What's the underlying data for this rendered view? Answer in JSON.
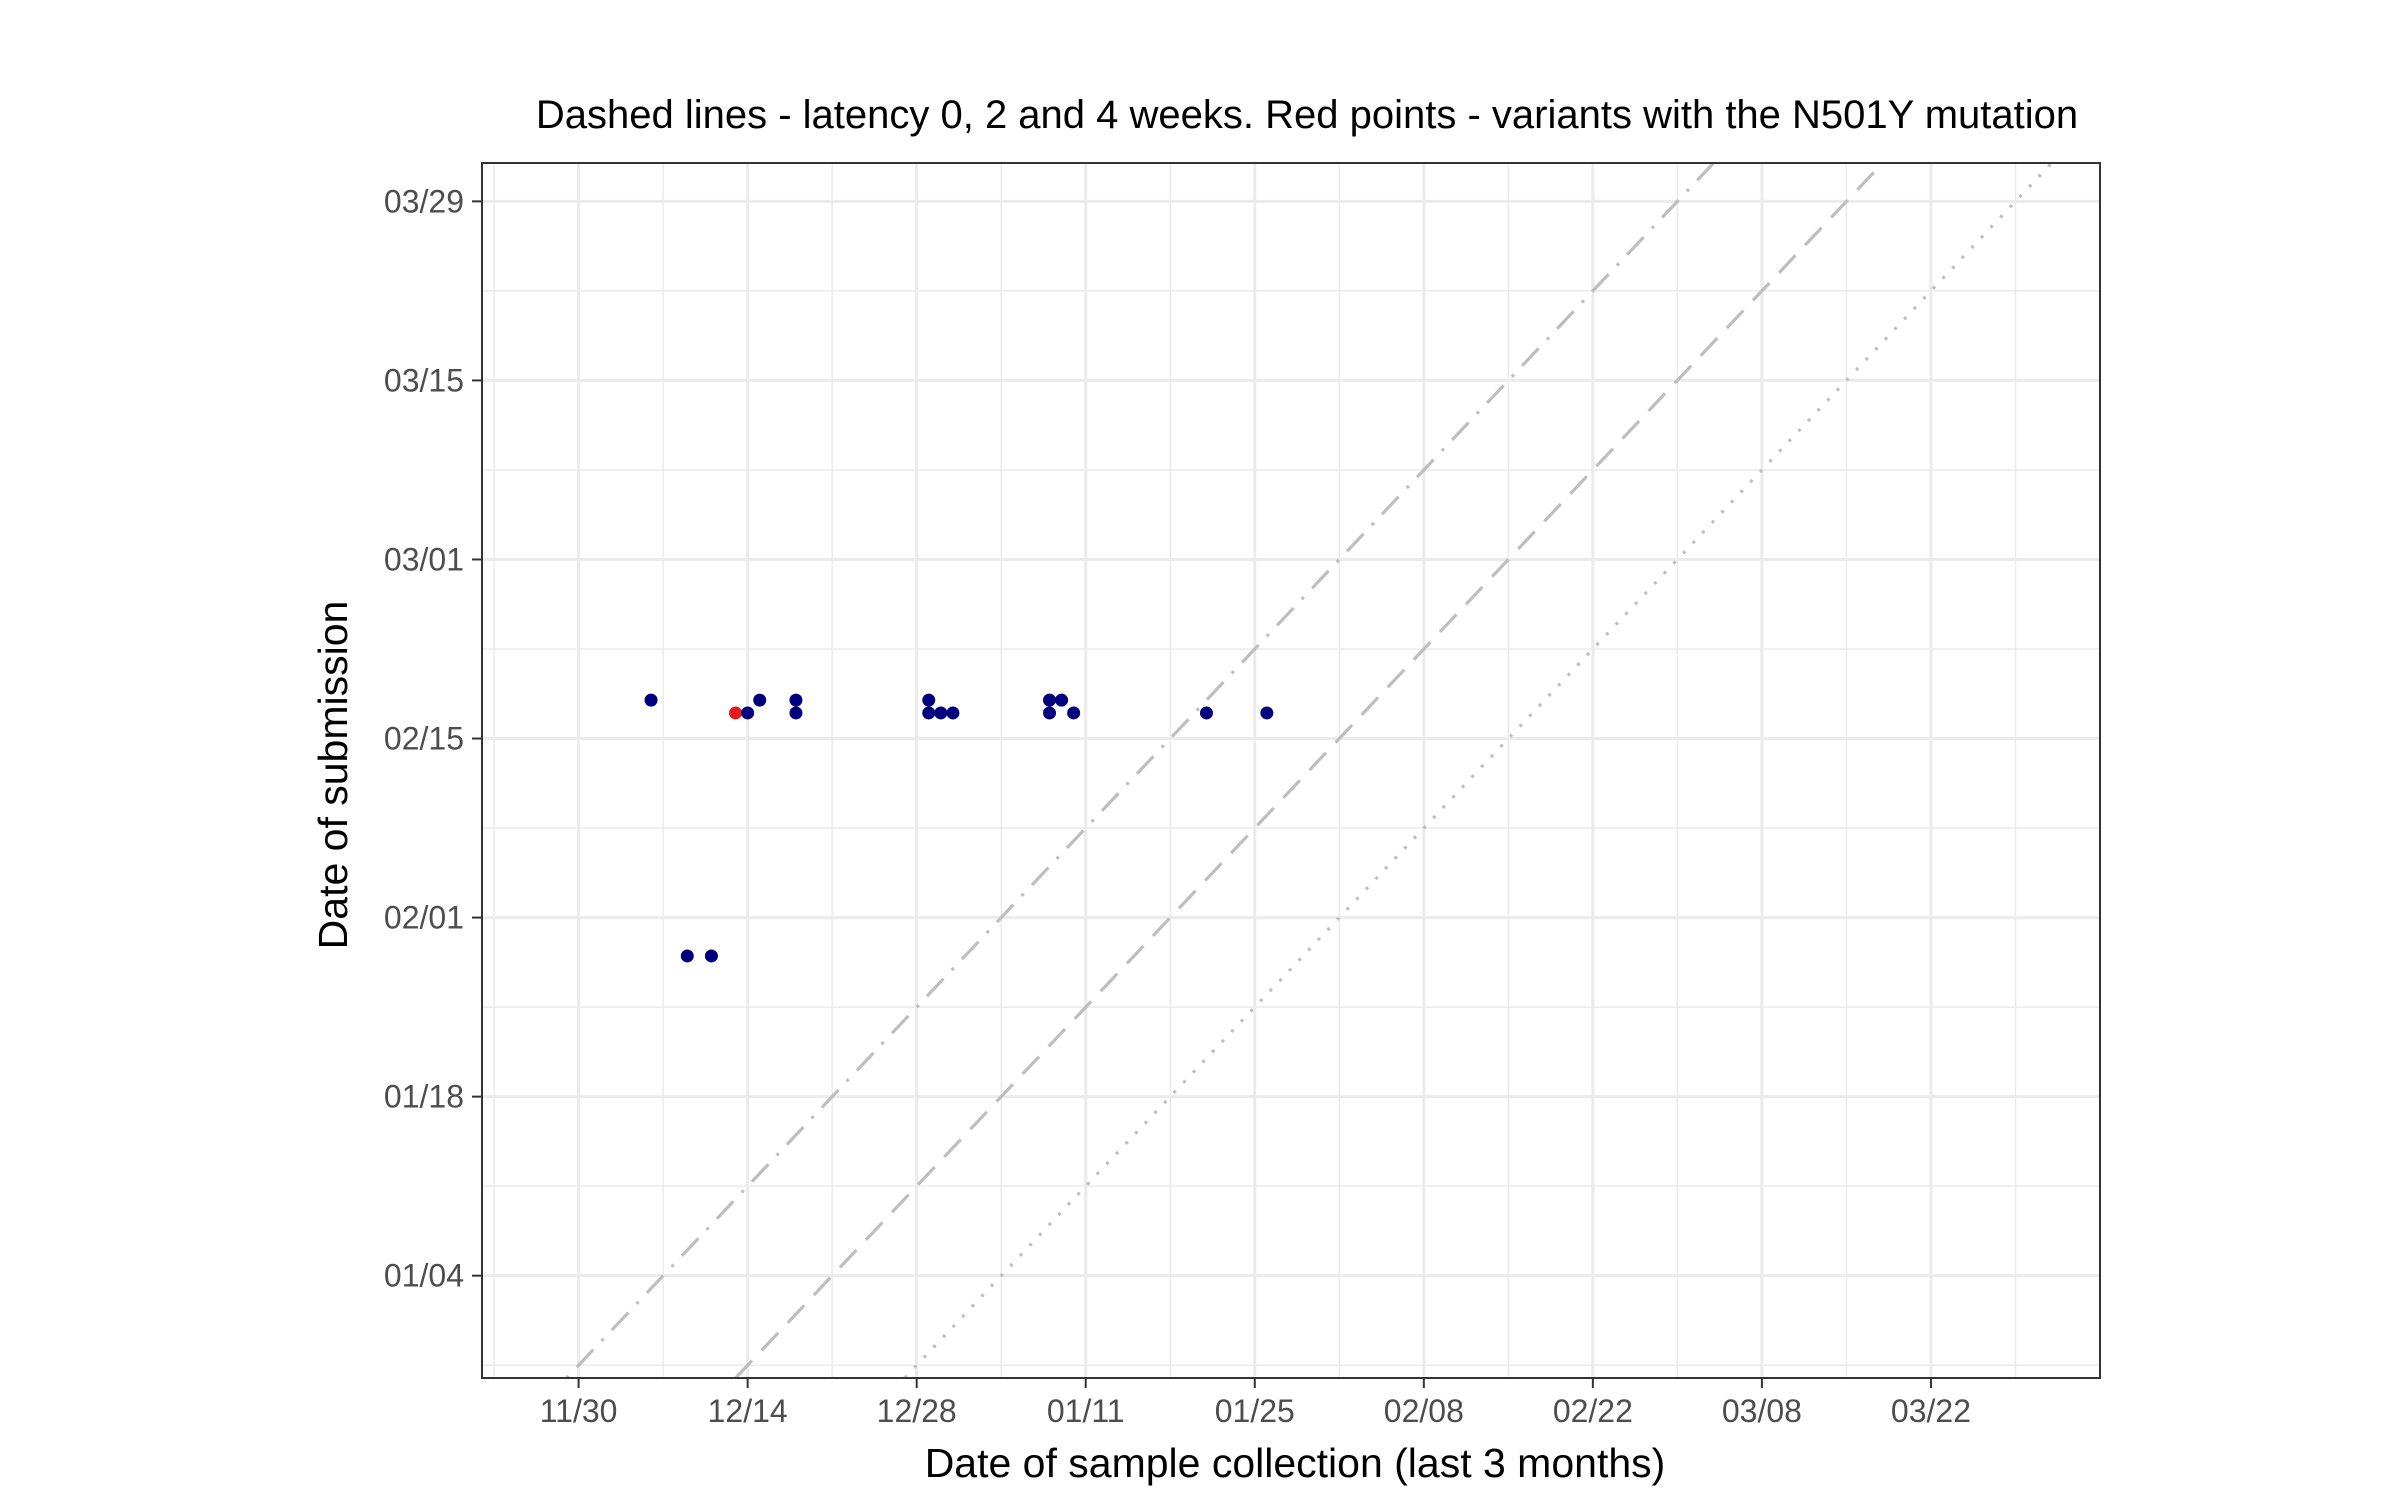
{
  "chart_data": {
    "type": "scatter",
    "title": "Dashed lines - latency 0, 2 and 4 weeks. Red points - variants with the N501Y mutation",
    "xlabel": "Date of sample collection (last 3 months)",
    "ylabel": "Date of submission",
    "x_ticks": [
      "2020-11-30",
      "2020-12-14",
      "2020-12-28",
      "2021-01-11",
      "2021-01-25",
      "2021-02-08",
      "2021-02-22",
      "2021-03-08",
      "2021-03-22"
    ],
    "x_tick_labels": [
      "11/30",
      "12/14",
      "12/28",
      "01/11",
      "01/25",
      "02/08",
      "02/22",
      "03/08",
      "03/22"
    ],
    "y_ticks": [
      "2021-01-04",
      "2021-01-18",
      "2021-02-01",
      "2021-02-15",
      "2021-03-01",
      "2021-03-15",
      "2021-03-29"
    ],
    "y_tick_labels": [
      "01/04",
      "01/18",
      "02/01",
      "02/15",
      "03/01",
      "03/15",
      "03/29"
    ],
    "xlim": [
      "2020-11-22",
      "2021-04-05"
    ],
    "ylim": [
      "2020-12-27",
      "2021-04-01"
    ],
    "grid": true,
    "reference_lines": [
      {
        "latency_weeks": 0,
        "style": "dotted"
      },
      {
        "latency_weeks": 2,
        "style": "dashed"
      },
      {
        "latency_weeks": 4,
        "style": "dotdash"
      }
    ],
    "colors": {
      "default": "#00007f",
      "n501y": "#e41a1c",
      "reference_line": "#bebebe",
      "grid": "#ebebeb"
    },
    "points": [
      {
        "x": "2020-12-06",
        "y": "2021-02-18",
        "n501y": false
      },
      {
        "x": "2020-12-09",
        "y": "2021-01-29",
        "n501y": false
      },
      {
        "x": "2020-12-11",
        "y": "2021-01-29",
        "n501y": false
      },
      {
        "x": "2020-12-13",
        "y": "2021-02-17",
        "n501y": true
      },
      {
        "x": "2020-12-14",
        "y": "2021-02-17",
        "n501y": false
      },
      {
        "x": "2020-12-15",
        "y": "2021-02-18",
        "n501y": false
      },
      {
        "x": "2020-12-18",
        "y": "2021-02-18",
        "n501y": false
      },
      {
        "x": "2020-12-18",
        "y": "2021-02-17",
        "n501y": false
      },
      {
        "x": "2020-12-29",
        "y": "2021-02-17",
        "n501y": false
      },
      {
        "x": "2020-12-29",
        "y": "2021-02-18",
        "n501y": false
      },
      {
        "x": "2020-12-30",
        "y": "2021-02-17",
        "n501y": false
      },
      {
        "x": "2020-12-31",
        "y": "2021-02-17",
        "n501y": false
      },
      {
        "x": "2021-01-08",
        "y": "2021-02-18",
        "n501y": false
      },
      {
        "x": "2021-01-08",
        "y": "2021-02-17",
        "n501y": false
      },
      {
        "x": "2021-01-09",
        "y": "2021-02-18",
        "n501y": false
      },
      {
        "x": "2021-01-10",
        "y": "2021-02-17",
        "n501y": false
      },
      {
        "x": "2021-01-21",
        "y": "2021-02-17",
        "n501y": false
      },
      {
        "x": "2021-01-26",
        "y": "2021-02-17",
        "n501y": false
      }
    ]
  }
}
